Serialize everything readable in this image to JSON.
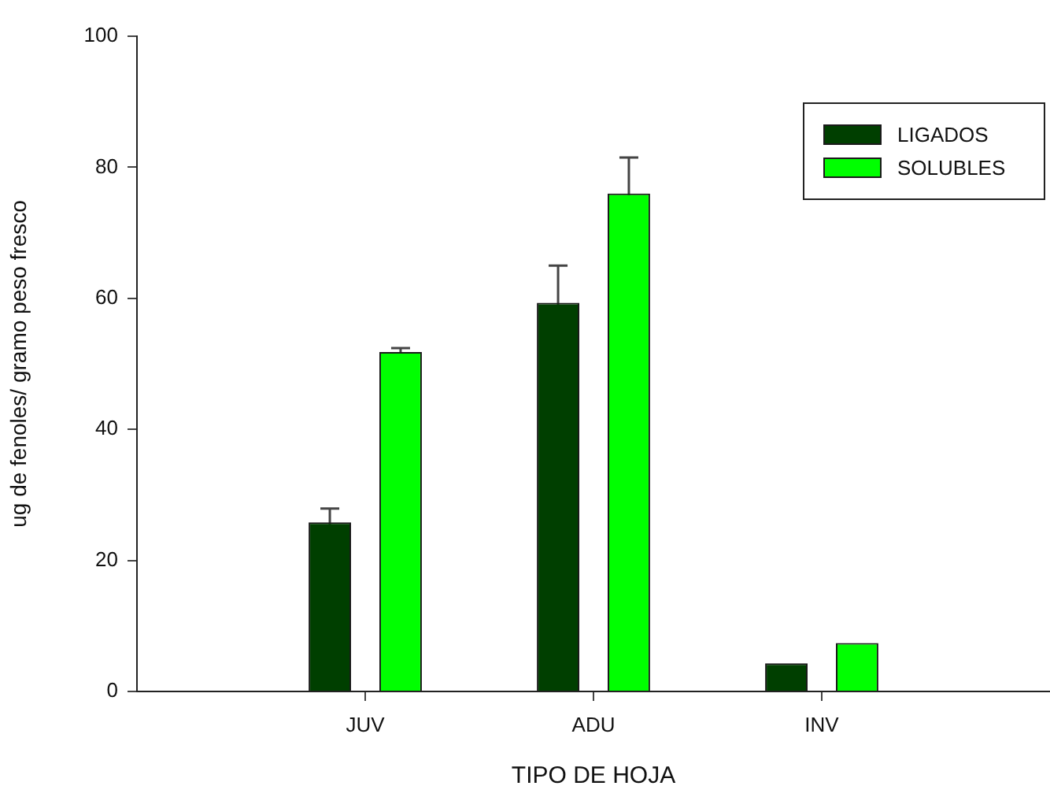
{
  "chart_data": {
    "type": "bar",
    "xlabel": "TIPO DE HOJA",
    "ylabel": "ug de fenoles/ gramo peso fresco",
    "categories": [
      "JUV",
      "ADU",
      "INV"
    ],
    "series": [
      {
        "name": "LIGADOS",
        "color": "#003f00",
        "values": [
          25.8,
          59.3,
          4.3
        ],
        "errors": [
          2.1,
          5.7,
          null
        ]
      },
      {
        "name": "SOLUBLES",
        "color": "#00ff00",
        "values": [
          51.8,
          76.0,
          7.4
        ],
        "errors": [
          0.6,
          5.5,
          null
        ]
      }
    ],
    "ylim": [
      0,
      100
    ],
    "yticks": [
      0,
      20,
      40,
      60,
      80,
      100
    ],
    "grid": false,
    "legend": "top right"
  }
}
